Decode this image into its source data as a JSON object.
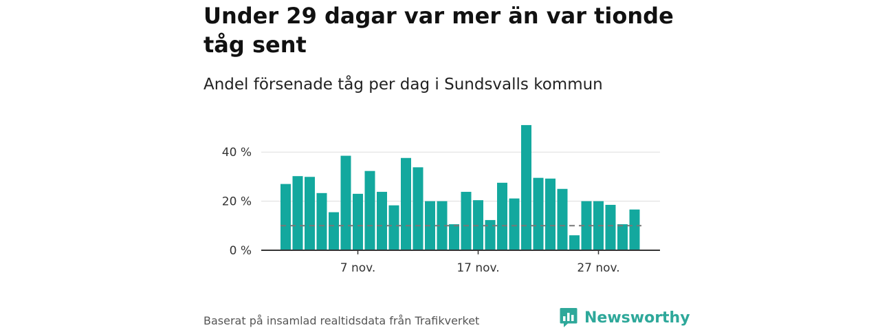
{
  "header": {
    "title": "Under 29 dagar var mer än var tionde tåg sent",
    "subtitle": "Andel försenade tåg per dag i Sundsvalls kommun"
  },
  "footer": {
    "source": "Baserat på insamlad realtidsdata från Trafikverket",
    "brand": "Newsworthy",
    "brand_icon": "newsworthy-logo-icon"
  },
  "colors": {
    "bar": "#13a89e",
    "reference_line": "#777777",
    "grid": "#dddddd",
    "axis": "#333333",
    "brand": "#2ea89a"
  },
  "chart_data": {
    "type": "bar",
    "title": "Under 29 dagar var mer än var tionde tåg sent",
    "subtitle": "Andel försenade tåg per dag i Sundsvalls kommun",
    "xlabel": "",
    "ylabel": "",
    "ylim": [
      0,
      55
    ],
    "unit": "%",
    "yticks": [
      0,
      20,
      40
    ],
    "ytick_labels": [
      "0 %",
      "20 %",
      "40 %"
    ],
    "x_tick_labels": [
      {
        "label": "7 nov.",
        "date": "2023-11-07"
      },
      {
        "label": "17 nov.",
        "date": "2023-11-17"
      },
      {
        "label": "27 nov.",
        "date": "2023-11-27"
      }
    ],
    "grid": true,
    "reference_line": {
      "value": 10,
      "style": "dashed"
    },
    "x": [
      "2023-11-01",
      "2023-11-02",
      "2023-11-03",
      "2023-11-04",
      "2023-11-05",
      "2023-11-06",
      "2023-11-07",
      "2023-11-08",
      "2023-11-09",
      "2023-11-10",
      "2023-11-11",
      "2023-11-12",
      "2023-11-13",
      "2023-11-14",
      "2023-11-15",
      "2023-11-16",
      "2023-11-17",
      "2023-11-18",
      "2023-11-19",
      "2023-11-20",
      "2023-11-21",
      "2023-11-22",
      "2023-11-23",
      "2023-11-24",
      "2023-11-25",
      "2023-11-26",
      "2023-11-27",
      "2023-11-28",
      "2023-11-29",
      "2023-11-30",
      "2023-12-01"
    ],
    "values": [
      27.0,
      30.2,
      29.9,
      23.3,
      15.5,
      38.5,
      23.0,
      32.3,
      23.8,
      18.3,
      37.6,
      33.8,
      20.0,
      20.0,
      10.6,
      23.8,
      20.4,
      12.3,
      27.5,
      21.1,
      51.0,
      29.5,
      29.2,
      25.0,
      6.1,
      20.0,
      20.0,
      18.5,
      10.6,
      16.6,
      0
    ]
  }
}
